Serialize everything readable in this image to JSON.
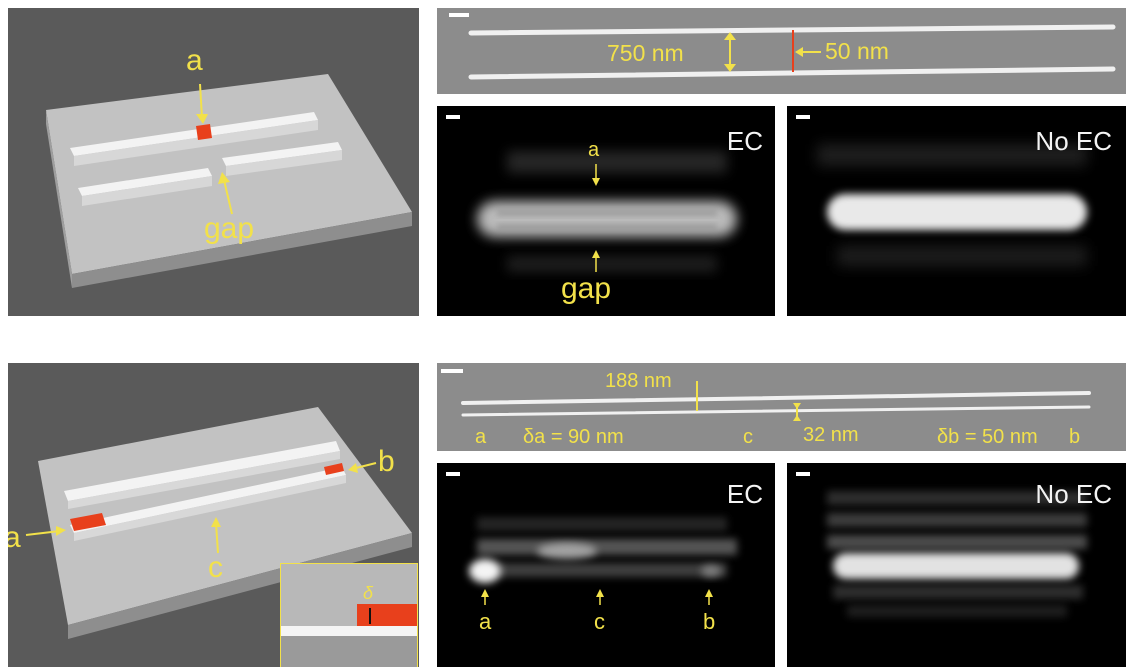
{
  "top": {
    "schematic": {
      "label_a": "a",
      "label_gap": "gap"
    },
    "sem": {
      "spacing_label": "750 nm",
      "gap_label": "50 nm"
    },
    "ec": {
      "title": "EC",
      "label_a": "a",
      "label_gap": "gap"
    },
    "noec": {
      "title": "No EC"
    }
  },
  "bottom": {
    "schematic": {
      "label_a": "a",
      "label_b": "b",
      "label_c": "c",
      "inset_label": "δ"
    },
    "sem": {
      "label_188": "188 nm",
      "label_a": "a",
      "label_delta_a": "δa = 90 nm",
      "label_c": "c",
      "label_32": "32 nm",
      "label_delta_b": "δb = 50 nm",
      "label_b": "b"
    },
    "ec": {
      "title": "EC",
      "label_a": "a",
      "label_c": "c",
      "label_b": "b"
    },
    "noec": {
      "title": "No EC"
    }
  },
  "colors": {
    "annotation": "#f2e14a",
    "highlight": "#e8401c",
    "schematic_bg": "#5a5a5a",
    "substrate": "#bfbfbf",
    "sem_bg": "#8a8a8a",
    "image_bg": "#000000"
  }
}
